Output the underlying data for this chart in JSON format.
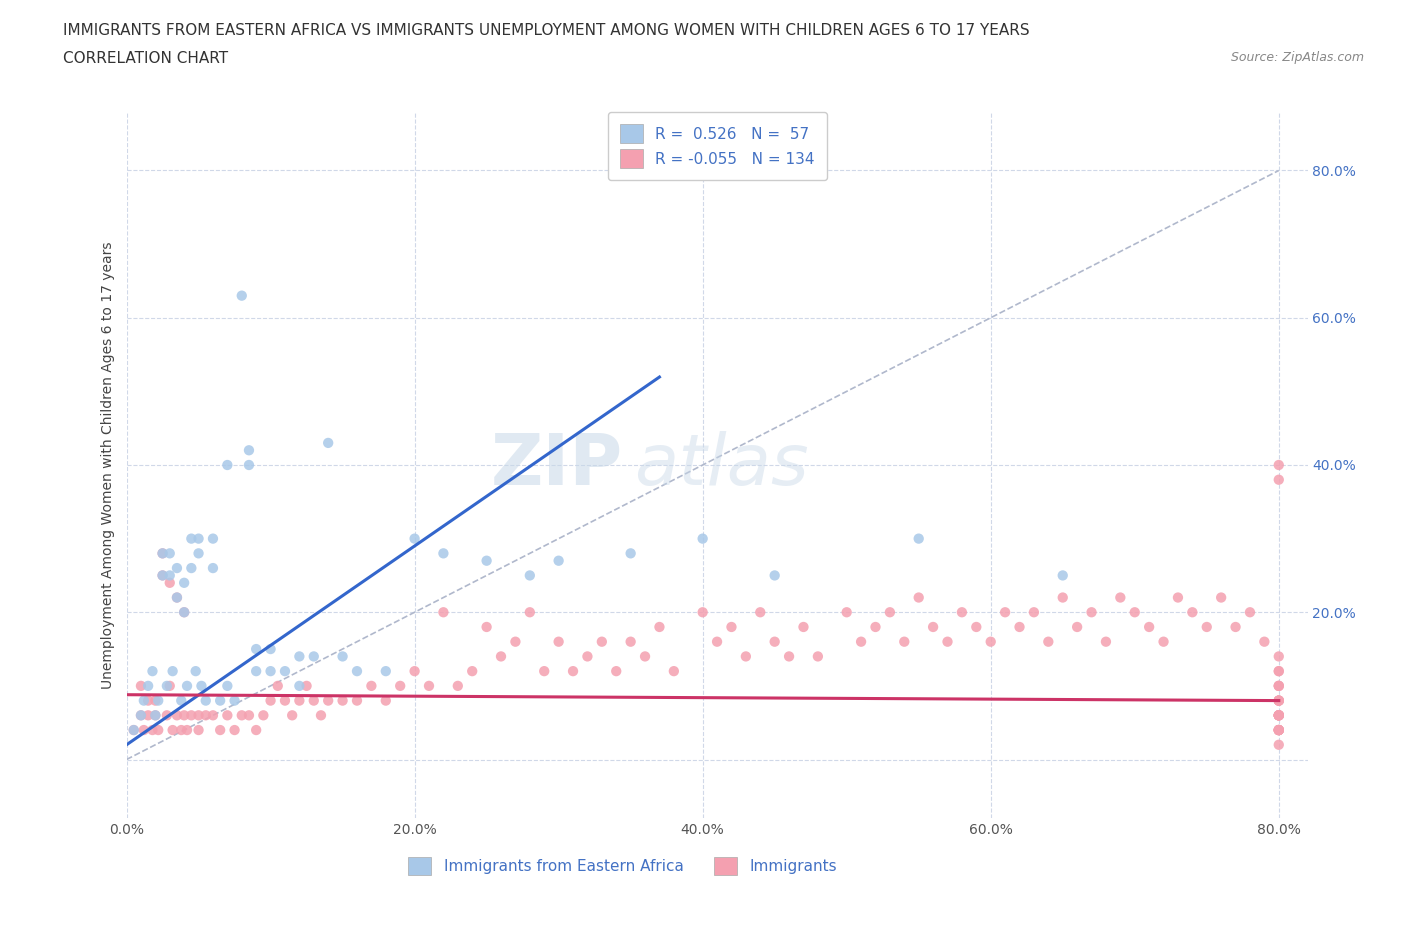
{
  "title_line1": "IMMIGRANTS FROM EASTERN AFRICA VS IMMIGRANTS UNEMPLOYMENT AMONG WOMEN WITH CHILDREN AGES 6 TO 17 YEARS",
  "title_line2": "CORRELATION CHART",
  "source_text": "Source: ZipAtlas.com",
  "ylabel": "Unemployment Among Women with Children Ages 6 to 17 years",
  "xlim": [
    0.0,
    0.82
  ],
  "ylim": [
    -0.08,
    0.88
  ],
  "xticks": [
    0.0,
    0.2,
    0.4,
    0.6,
    0.8
  ],
  "xticklabels": [
    "0.0%",
    "20.0%",
    "40.0%",
    "60.0%",
    "80.0%"
  ],
  "left_yticks": [
    0.0,
    0.2,
    0.4,
    0.6,
    0.8
  ],
  "left_yticklabels": [
    "",
    "",
    "",
    "",
    ""
  ],
  "right_yticks": [
    0.2,
    0.4,
    0.6,
    0.8
  ],
  "right_yticklabels": [
    "20.0%",
    "40.0%",
    "60.0%",
    "80.0%"
  ],
  "blue_R": 0.526,
  "blue_N": 57,
  "pink_R": -0.055,
  "pink_N": 134,
  "blue_color": "#a8c8e8",
  "blue_line_color": "#3366cc",
  "pink_color": "#f4a0b0",
  "pink_line_color": "#cc3366",
  "blue_scatter_x": [
    0.005,
    0.01,
    0.012,
    0.015,
    0.018,
    0.02,
    0.022,
    0.025,
    0.025,
    0.028,
    0.03,
    0.03,
    0.032,
    0.035,
    0.035,
    0.038,
    0.04,
    0.04,
    0.042,
    0.045,
    0.045,
    0.048,
    0.05,
    0.05,
    0.052,
    0.055,
    0.06,
    0.06,
    0.065,
    0.07,
    0.07,
    0.075,
    0.08,
    0.085,
    0.085,
    0.09,
    0.09,
    0.1,
    0.1,
    0.11,
    0.12,
    0.12,
    0.13,
    0.14,
    0.15,
    0.16,
    0.18,
    0.2,
    0.22,
    0.25,
    0.28,
    0.3,
    0.35,
    0.4,
    0.45,
    0.55,
    0.65
  ],
  "blue_scatter_y": [
    0.04,
    0.06,
    0.08,
    0.1,
    0.12,
    0.06,
    0.08,
    0.25,
    0.28,
    0.1,
    0.25,
    0.28,
    0.12,
    0.22,
    0.26,
    0.08,
    0.2,
    0.24,
    0.1,
    0.26,
    0.3,
    0.12,
    0.28,
    0.3,
    0.1,
    0.08,
    0.26,
    0.3,
    0.08,
    0.4,
    0.1,
    0.08,
    0.63,
    0.4,
    0.42,
    0.12,
    0.15,
    0.12,
    0.15,
    0.12,
    0.14,
    0.1,
    0.14,
    0.43,
    0.14,
    0.12,
    0.12,
    0.3,
    0.28,
    0.27,
    0.25,
    0.27,
    0.28,
    0.3,
    0.25,
    0.3,
    0.25
  ],
  "pink_scatter_x": [
    0.005,
    0.01,
    0.01,
    0.012,
    0.015,
    0.015,
    0.018,
    0.02,
    0.02,
    0.022,
    0.025,
    0.025,
    0.028,
    0.03,
    0.03,
    0.032,
    0.035,
    0.035,
    0.038,
    0.04,
    0.04,
    0.042,
    0.045,
    0.05,
    0.05,
    0.055,
    0.06,
    0.065,
    0.07,
    0.075,
    0.08,
    0.085,
    0.09,
    0.095,
    0.1,
    0.105,
    0.11,
    0.115,
    0.12,
    0.125,
    0.13,
    0.135,
    0.14,
    0.15,
    0.16,
    0.17,
    0.18,
    0.19,
    0.2,
    0.21,
    0.22,
    0.23,
    0.24,
    0.25,
    0.26,
    0.27,
    0.28,
    0.29,
    0.3,
    0.31,
    0.32,
    0.33,
    0.34,
    0.35,
    0.36,
    0.37,
    0.38,
    0.4,
    0.41,
    0.42,
    0.43,
    0.44,
    0.45,
    0.46,
    0.47,
    0.48,
    0.5,
    0.51,
    0.52,
    0.53,
    0.54,
    0.55,
    0.56,
    0.57,
    0.58,
    0.59,
    0.6,
    0.61,
    0.62,
    0.63,
    0.64,
    0.65,
    0.66,
    0.67,
    0.68,
    0.69,
    0.7,
    0.71,
    0.72,
    0.73,
    0.74,
    0.75,
    0.76,
    0.77,
    0.78,
    0.79,
    0.8,
    0.8,
    0.8,
    0.8,
    0.8,
    0.8,
    0.8,
    0.8,
    0.8,
    0.8,
    0.8,
    0.8,
    0.8,
    0.8,
    0.8,
    0.8,
    0.8,
    0.8,
    0.8,
    0.8,
    0.8,
    0.8,
    0.8,
    0.8,
    0.8,
    0.8,
    0.8,
    0.8
  ],
  "pink_scatter_y": [
    0.04,
    0.06,
    0.1,
    0.04,
    0.06,
    0.08,
    0.04,
    0.06,
    0.08,
    0.04,
    0.25,
    0.28,
    0.06,
    0.24,
    0.1,
    0.04,
    0.22,
    0.06,
    0.04,
    0.2,
    0.06,
    0.04,
    0.06,
    0.04,
    0.06,
    0.06,
    0.06,
    0.04,
    0.06,
    0.04,
    0.06,
    0.06,
    0.04,
    0.06,
    0.08,
    0.1,
    0.08,
    0.06,
    0.08,
    0.1,
    0.08,
    0.06,
    0.08,
    0.08,
    0.08,
    0.1,
    0.08,
    0.1,
    0.12,
    0.1,
    0.2,
    0.1,
    0.12,
    0.18,
    0.14,
    0.16,
    0.2,
    0.12,
    0.16,
    0.12,
    0.14,
    0.16,
    0.12,
    0.16,
    0.14,
    0.18,
    0.12,
    0.2,
    0.16,
    0.18,
    0.14,
    0.2,
    0.16,
    0.14,
    0.18,
    0.14,
    0.2,
    0.16,
    0.18,
    0.2,
    0.16,
    0.22,
    0.18,
    0.16,
    0.2,
    0.18,
    0.16,
    0.2,
    0.18,
    0.2,
    0.16,
    0.22,
    0.18,
    0.2,
    0.16,
    0.22,
    0.2,
    0.18,
    0.16,
    0.22,
    0.2,
    0.18,
    0.22,
    0.18,
    0.2,
    0.16,
    0.04,
    0.06,
    0.08,
    0.1,
    0.12,
    0.04,
    0.06,
    0.08,
    0.1,
    0.12,
    0.14,
    0.04,
    0.06,
    0.08,
    0.1,
    0.04,
    0.06,
    0.08,
    0.04,
    0.06,
    0.08,
    0.04,
    0.06,
    0.38,
    0.4,
    0.04,
    0.06,
    0.02
  ],
  "watermark_text_1": "ZIP",
  "watermark_text_2": "atlas",
  "legend_blue_label": "Immigrants from Eastern Africa",
  "legend_pink_label": "Immigrants",
  "background_color": "#ffffff",
  "grid_color": "#d0d8e8",
  "diagonal_line_color": "#b0b8cc",
  "title_fontsize": 11,
  "subtitle_fontsize": 11,
  "axis_label_fontsize": 10,
  "tick_fontsize": 10,
  "legend_fontsize": 11
}
